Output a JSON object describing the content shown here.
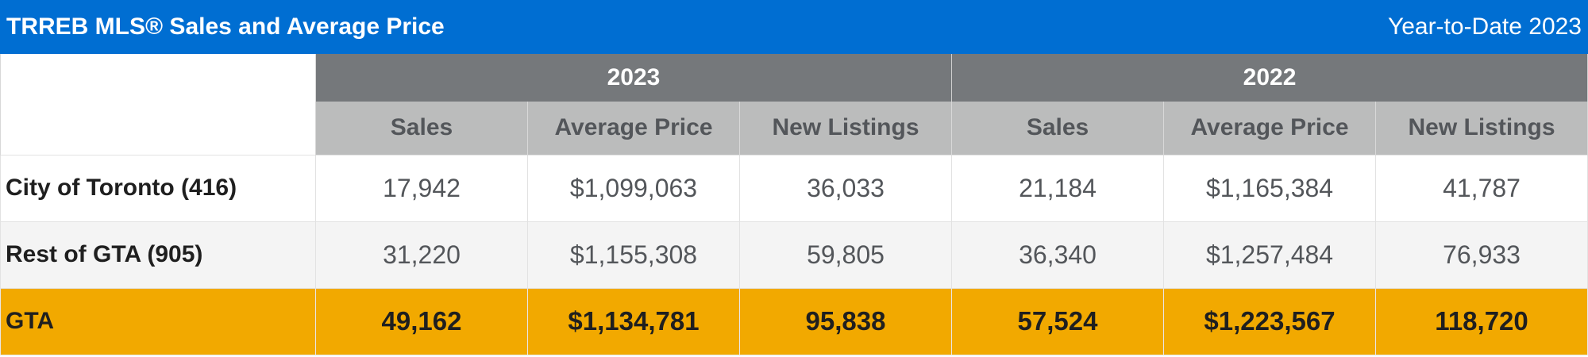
{
  "header": {
    "title": "TRREB MLS® Sales and Average Price",
    "period": "Year-to-Date 2023"
  },
  "table": {
    "years": [
      "2023",
      "2022"
    ],
    "metrics": [
      "Sales",
      "Average Price",
      "New Listings"
    ],
    "rows": [
      {
        "region": "City of Toronto (416)",
        "values": [
          "17,942",
          "$1,099,063",
          "36,033",
          "21,184",
          "$1,165,384",
          "41,787"
        ]
      },
      {
        "region": "Rest of GTA (905)",
        "values": [
          "31,220",
          "$1,155,308",
          "59,805",
          "36,340",
          "$1,257,484",
          "76,933"
        ]
      },
      {
        "region": "GTA",
        "values": [
          "49,162",
          "$1,134,781",
          "95,838",
          "57,524",
          "$1,223,567",
          "118,720"
        ]
      }
    ]
  },
  "colors": {
    "title_bar": "#006ed2",
    "year_header": "#75787b",
    "metric_header": "#bbbcbc",
    "total_row": "#f2a900",
    "alt_row": "#f4f4f4"
  }
}
